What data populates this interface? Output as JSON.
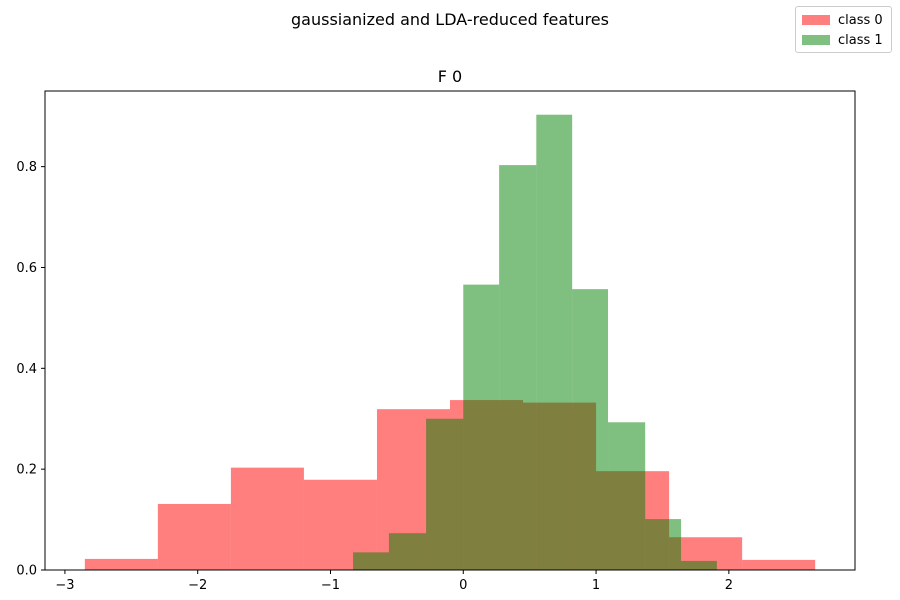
{
  "figure": {
    "suptitle": "gaussianized and LDA-reduced features"
  },
  "chart_data": {
    "type": "histogram",
    "title": "F 0",
    "xlabel": "",
    "ylabel": "",
    "xlim": [
      -3.15,
      2.95
    ],
    "ylim": [
      0,
      0.95
    ],
    "xticks": [
      -3,
      -2,
      -1,
      0,
      1,
      2
    ],
    "xtick_labels": [
      "−3",
      "−2",
      "−1",
      "0",
      "1",
      "2"
    ],
    "yticks": [
      0.0,
      0.2,
      0.4,
      0.6,
      0.8
    ],
    "ytick_labels": [
      "0.0",
      "0.2",
      "0.4",
      "0.6",
      "0.8"
    ],
    "legend_position": "top-right (figure)",
    "series": [
      {
        "name": "class 0",
        "color": "#ff0000",
        "alpha": 0.5,
        "bins": [
          {
            "x0": -2.85,
            "x1": -2.3,
            "height": 0.022
          },
          {
            "x0": -2.3,
            "x1": -1.75,
            "height": 0.131
          },
          {
            "x0": -1.75,
            "x1": -1.2,
            "height": 0.203
          },
          {
            "x0": -1.2,
            "x1": -0.65,
            "height": 0.179
          },
          {
            "x0": -0.65,
            "x1": -0.1,
            "height": 0.319
          },
          {
            "x0": -0.1,
            "x1": 0.45,
            "height": 0.337
          },
          {
            "x0": 0.45,
            "x1": 1.0,
            "height": 0.332
          },
          {
            "x0": 1.0,
            "x1": 1.55,
            "height": 0.196
          },
          {
            "x0": 1.55,
            "x1": 2.1,
            "height": 0.065
          },
          {
            "x0": 2.1,
            "x1": 2.65,
            "height": 0.02
          }
        ]
      },
      {
        "name": "class 1",
        "color": "#008000",
        "alpha": 0.5,
        "bins": [
          {
            "x0": -0.83,
            "x1": -0.56,
            "height": 0.035
          },
          {
            "x0": -0.56,
            "x1": -0.28,
            "height": 0.073
          },
          {
            "x0": -0.28,
            "x1": 0.0,
            "height": 0.3
          },
          {
            "x0": 0.0,
            "x1": 0.27,
            "height": 0.566
          },
          {
            "x0": 0.27,
            "x1": 0.55,
            "height": 0.803
          },
          {
            "x0": 0.55,
            "x1": 0.82,
            "height": 0.903
          },
          {
            "x0": 0.82,
            "x1": 1.09,
            "height": 0.557
          },
          {
            "x0": 1.09,
            "x1": 1.37,
            "height": 0.293
          },
          {
            "x0": 1.37,
            "x1": 1.64,
            "height": 0.101
          },
          {
            "x0": 1.64,
            "x1": 1.91,
            "height": 0.018
          }
        ]
      }
    ]
  }
}
